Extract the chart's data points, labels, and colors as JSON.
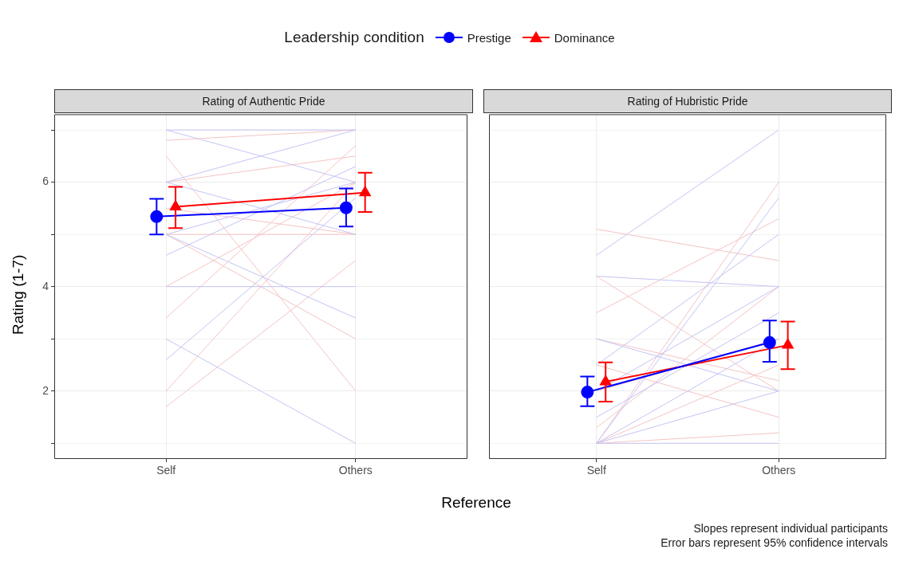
{
  "chart_data": [
    {
      "type": "line",
      "title": "Rating of Authentic Pride",
      "xlabel": "Reference",
      "ylabel": "Rating (1-7)",
      "legend_title": "Leadership condition",
      "legend": "top",
      "grid": true,
      "annotations": [
        "Slopes represent individual participants",
        "Error bars represent 95% confidence intervals"
      ],
      "categories": [
        "Self",
        "Others"
      ],
      "ylim": [
        0.7,
        7.3
      ],
      "yticks": [
        {
          "value": 1,
          "label": null
        },
        2,
        {
          "value": 3,
          "label": null
        },
        4,
        {
          "value": 5,
          "label": null
        },
        6,
        {
          "value": 7,
          "label": null
        }
      ],
      "series": [
        {
          "color": "#c4c4f4",
          "values": [
            7,
            7
          ]
        },
        {
          "color": "#c4c4f4",
          "values": [
            6,
            7
          ]
        },
        {
          "color": "#c4c4f4",
          "values": [
            5,
            6
          ]
        },
        {
          "color": "#c4c4f4",
          "values": [
            4,
            4
          ]
        },
        {
          "color": "#c4c4f4",
          "values": [
            6,
            5
          ]
        },
        {
          "color": "#c4c4f4",
          "values": [
            2.6,
            5.7
          ]
        },
        {
          "color": "#c4c4f4",
          "values": [
            5,
            3.4
          ]
        },
        {
          "color": "#c4c4f4",
          "values": [
            7,
            6
          ]
        },
        {
          "color": "#c4c4f4",
          "values": [
            4.6,
            6.3
          ]
        },
        {
          "color": "#c4c4f4",
          "values": [
            3,
            1
          ]
        },
        {
          "color": "#f4c4c4",
          "values": [
            6.8,
            7
          ]
        },
        {
          "color": "#f4c4c4",
          "values": [
            5,
            5
          ]
        },
        {
          "color": "#f4c4c4",
          "values": [
            1.7,
            4.5
          ]
        },
        {
          "color": "#f4c4c4",
          "values": [
            6.5,
            2
          ]
        },
        {
          "color": "#f4c4c4",
          "values": [
            4,
            6
          ]
        },
        {
          "color": "#f4c4c4",
          "values": [
            3.4,
            6.7
          ]
        },
        {
          "color": "#f4c4c4",
          "values": [
            5.5,
            5
          ]
        },
        {
          "color": "#f4c4c4",
          "values": [
            6,
            6.5
          ]
        },
        {
          "color": "#f4c4c4",
          "values": [
            2,
            6
          ]
        },
        {
          "color": "#f4c4c4",
          "values": [
            5,
            3
          ]
        },
        {
          "name": "Prestige",
          "color": "#0000ff",
          "marker": "circle",
          "values": [
            5.34,
            5.51
          ],
          "errors": [
            [
              5.0,
              5.68
            ],
            [
              5.15,
              5.88
            ]
          ]
        },
        {
          "name": "Dominance",
          "color": "#ff0000",
          "marker": "triangle",
          "values": [
            5.53,
            5.8
          ],
          "errors": [
            [
              5.12,
              5.91
            ],
            [
              5.43,
              6.18
            ]
          ]
        }
      ]
    },
    {
      "type": "line",
      "title": "Rating of Hubristic Pride",
      "grid": true,
      "tick_labels": "x",
      "categories": [
        "Self",
        "Others"
      ],
      "ylim": [
        0.7,
        7.3
      ],
      "yticks": [
        {
          "value": 1,
          "label": null
        },
        2,
        {
          "value": 3,
          "label": null
        },
        4,
        {
          "value": 5,
          "label": null
        },
        6,
        {
          "value": 7,
          "label": null
        }
      ],
      "series": [
        {
          "color": "#c4c4f4",
          "values": [
            1,
            1
          ]
        },
        {
          "color": "#c4c4f4",
          "values": [
            1,
            3
          ]
        },
        {
          "color": "#c4c4f4",
          "values": [
            2,
            4
          ]
        },
        {
          "color": "#c4c4f4",
          "values": [
            4.2,
            4
          ]
        },
        {
          "color": "#c4c4f4",
          "values": [
            1,
            5.7
          ]
        },
        {
          "color": "#c4c4f4",
          "values": [
            3,
            2
          ]
        },
        {
          "color": "#c4c4f4",
          "values": [
            1.5,
            3.5
          ]
        },
        {
          "color": "#c4c4f4",
          "values": [
            2.5,
            5
          ]
        },
        {
          "color": "#c4c4f4",
          "values": [
            4.6,
            7
          ]
        },
        {
          "color": "#c4c4f4",
          "values": [
            1,
            2
          ]
        },
        {
          "color": "#f4c4c4",
          "values": [
            1,
            1.2
          ]
        },
        {
          "color": "#f4c4c4",
          "values": [
            2,
            3
          ]
        },
        {
          "color": "#f4c4c4",
          "values": [
            4.2,
            2
          ]
        },
        {
          "color": "#f4c4c4",
          "values": [
            1,
            6
          ]
        },
        {
          "color": "#f4c4c4",
          "values": [
            5.1,
            4.5
          ]
        },
        {
          "color": "#f4c4c4",
          "values": [
            3,
            2.2
          ]
        },
        {
          "color": "#f4c4c4",
          "values": [
            1.3,
            4
          ]
        },
        {
          "color": "#f4c4c4",
          "values": [
            2.5,
            1.5
          ]
        },
        {
          "color": "#f4c4c4",
          "values": [
            3.5,
            5.3
          ]
        },
        {
          "color": "#f4c4c4",
          "values": [
            1,
            2.5
          ]
        },
        {
          "name": "Prestige",
          "color": "#0000ff",
          "marker": "circle",
          "values": [
            1.98,
            2.93
          ],
          "errors": [
            [
              1.71,
              2.28
            ],
            [
              2.56,
              3.35
            ]
          ]
        },
        {
          "name": "Dominance",
          "color": "#ff0000",
          "marker": "triangle",
          "values": [
            2.18,
            2.88
          ],
          "errors": [
            [
              1.8,
              2.55
            ],
            [
              2.42,
              3.33
            ]
          ]
        }
      ]
    }
  ]
}
